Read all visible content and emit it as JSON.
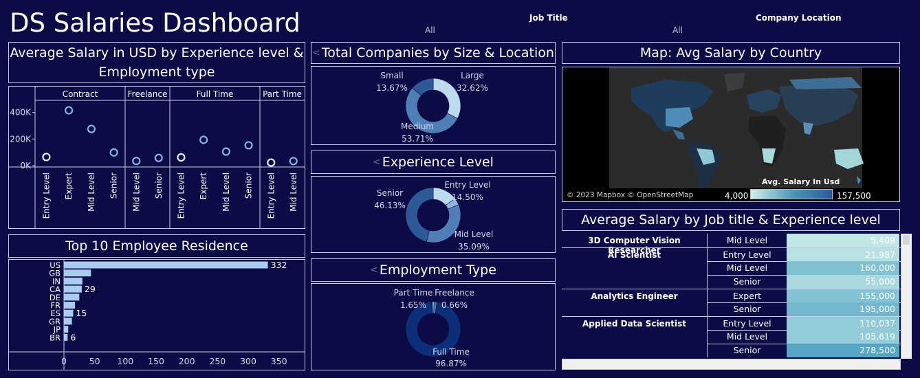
{
  "title": "DS Salaries Dashboard",
  "filters": [
    {
      "label": "Job Title",
      "value": "All"
    },
    {
      "label": "Company Location",
      "value": "All"
    }
  ],
  "scatter_panel": {
    "title": "Average Salary in USD by Experience level & Employment type",
    "chart_data": {
      "type": "scatter",
      "groups": [
        {
          "name": "Contract",
          "points": [
            {
              "x": "Entry Level",
              "y": 65000
            },
            {
              "x": "Expert",
              "y": 416000
            },
            {
              "x": "Mid Level",
              "y": 276000
            },
            {
              "x": "Senior",
              "y": 99000
            }
          ]
        },
        {
          "name": "Freelance",
          "points": [
            {
              "x": "Mid Level",
              "y": 35000
            },
            {
              "x": "Senior",
              "y": 58000
            }
          ]
        },
        {
          "name": "Full Time",
          "points": [
            {
              "x": "Entry Level",
              "y": 62000
            },
            {
              "x": "Expert",
              "y": 194000
            },
            {
              "x": "Mid Level",
              "y": 106000
            },
            {
              "x": "Senior",
              "y": 153000
            }
          ]
        },
        {
          "name": "Part Time",
          "points": [
            {
              "x": "Entry Level",
              "y": 23000
            },
            {
              "x": "Mid Level",
              "y": 34000
            }
          ]
        }
      ],
      "yticks": [
        "400K",
        "200K",
        "0K"
      ],
      "ylim": [
        0,
        450000
      ]
    }
  },
  "residence_panel": {
    "title": "Top 10 Employee Residence",
    "chart_data": {
      "type": "bar",
      "categories": [
        "US",
        "GB",
        "IN",
        "CA",
        "DE",
        "FR",
        "ES",
        "GR",
        "JP",
        "BR"
      ],
      "values": [
        332,
        44,
        30,
        29,
        25,
        18,
        15,
        13,
        7,
        6
      ],
      "labels": [
        "332",
        "",
        "",
        "29",
        "",
        "",
        "15",
        "",
        "",
        "6"
      ],
      "xticks": [
        "0",
        "50",
        "100",
        "150",
        "200",
        "250",
        "300",
        "350"
      ],
      "xlim": [
        0,
        370
      ],
      "bar_color": "#a9cdf0"
    }
  },
  "size_panel": {
    "title": "Total Companies by Size & Location",
    "chart_data": {
      "type": "pie",
      "slices": [
        {
          "name": "Large",
          "value": 32.62,
          "label": "32.62%",
          "color": "#bcd9ee"
        },
        {
          "name": "Medium",
          "value": 53.71,
          "label": "53.71%",
          "color": "#4f7fb6"
        },
        {
          "name": "Small",
          "value": 13.67,
          "label": "13.67%",
          "color": "#2d5996"
        }
      ]
    }
  },
  "experience_panel": {
    "title": "Experience Level",
    "chart_data": {
      "type": "pie",
      "slices": [
        {
          "name": "Entry Level",
          "value": 14.5,
          "label": "14.50%",
          "color": "#bcd9ee"
        },
        {
          "name": "Expert",
          "value": 4.28,
          "label": "",
          "color": "#8fb6df"
        },
        {
          "name": "Mid Level",
          "value": 35.09,
          "label": "35.09%",
          "color": "#4f7fb6"
        },
        {
          "name": "Senior",
          "value": 46.13,
          "label": "46.13%",
          "color": "#2d5996"
        }
      ]
    }
  },
  "employment_panel": {
    "title": "Employment Type",
    "chart_data": {
      "type": "pie",
      "slices": [
        {
          "name": "Freelance",
          "value": 0.66,
          "label": "0.66%",
          "color": "#bcd9ee"
        },
        {
          "name": "Part Time",
          "value": 1.65,
          "label": "1.65%",
          "color": "#4f7fb6"
        },
        {
          "name": "Full Time",
          "value": 96.87,
          "label": "96.87%",
          "color": "#0d2f7a"
        },
        {
          "name": "Contract",
          "value": 0.82,
          "label": "",
          "color": "#6c97cc"
        }
      ]
    }
  },
  "map_panel": {
    "title": "Map: Avg Salary by Country",
    "attribution": "© 2023 Mapbox © OpenStreetMap",
    "legend_title": "Avg. Salary In Usd",
    "legend_min": "4,000",
    "legend_max": "157,500",
    "colors": {
      "low": "#cfeee9",
      "high": "#2a5a9c"
    }
  },
  "jobtitle_panel": {
    "title": "Average Salary by Job title & Experience level",
    "rows": [
      {
        "job": "3D Computer Vision Researcher",
        "exp": "Mid Level",
        "value": "5,409",
        "shade": 0.05
      },
      {
        "job": "AI Scientist",
        "exp": "Entry Level",
        "value": "21,987",
        "shade": 0.12
      },
      {
        "job": "",
        "exp": "Mid Level",
        "value": "160,000",
        "shade": 0.5
      },
      {
        "job": "",
        "exp": "Senior",
        "value": "55,000",
        "shade": 0.22
      },
      {
        "job": "Analytics Engineer",
        "exp": "Expert",
        "value": "155,000",
        "shade": 0.48
      },
      {
        "job": "",
        "exp": "Senior",
        "value": "195,000",
        "shade": 0.6
      },
      {
        "job": "Applied Data Scientist",
        "exp": "Entry Level",
        "value": "110,037",
        "shade": 0.38
      },
      {
        "job": "",
        "exp": "Mid Level",
        "value": "105,619",
        "shade": 0.37
      },
      {
        "job": "",
        "exp": "Senior",
        "value": "278,500",
        "shade": 0.8
      }
    ]
  }
}
